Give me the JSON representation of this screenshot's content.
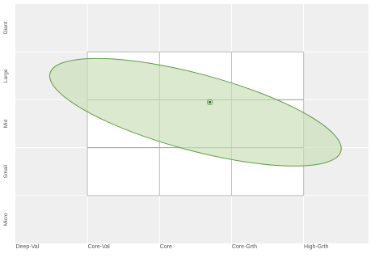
{
  "chart_data": {
    "type": "scatter",
    "title": "",
    "xlabel": "",
    "ylabel": "",
    "x_categories": [
      "Deep-Val",
      "Core-Val",
      "Core",
      "Core-Grth",
      "High-Grth"
    ],
    "y_categories": [
      "Micro",
      "Small",
      "Mid",
      "Large",
      "Giant"
    ],
    "grid": true,
    "style_box": {
      "x_range": [
        1,
        4
      ],
      "y_range": [
        1,
        4
      ],
      "divider_values": {
        "x": [
          2,
          3
        ],
        "y": [
          2,
          3
        ]
      },
      "fill": "#ffffff",
      "border": "#c6c6c6"
    },
    "centroid": {
      "x": 2.7,
      "y": 2.95
    },
    "ownership_zone": {
      "center": {
        "x": 2.5,
        "y": 2.74
      },
      "radius_x": 2.09,
      "radius_y": 0.8,
      "rotation_deg": -15
    },
    "footnote": "",
    "colors": {
      "background": "#efefef",
      "zone_fill": "#c7dfb4",
      "zone_stroke": "#5f9b47",
      "centroid_fill": "#2c6e22"
    }
  }
}
